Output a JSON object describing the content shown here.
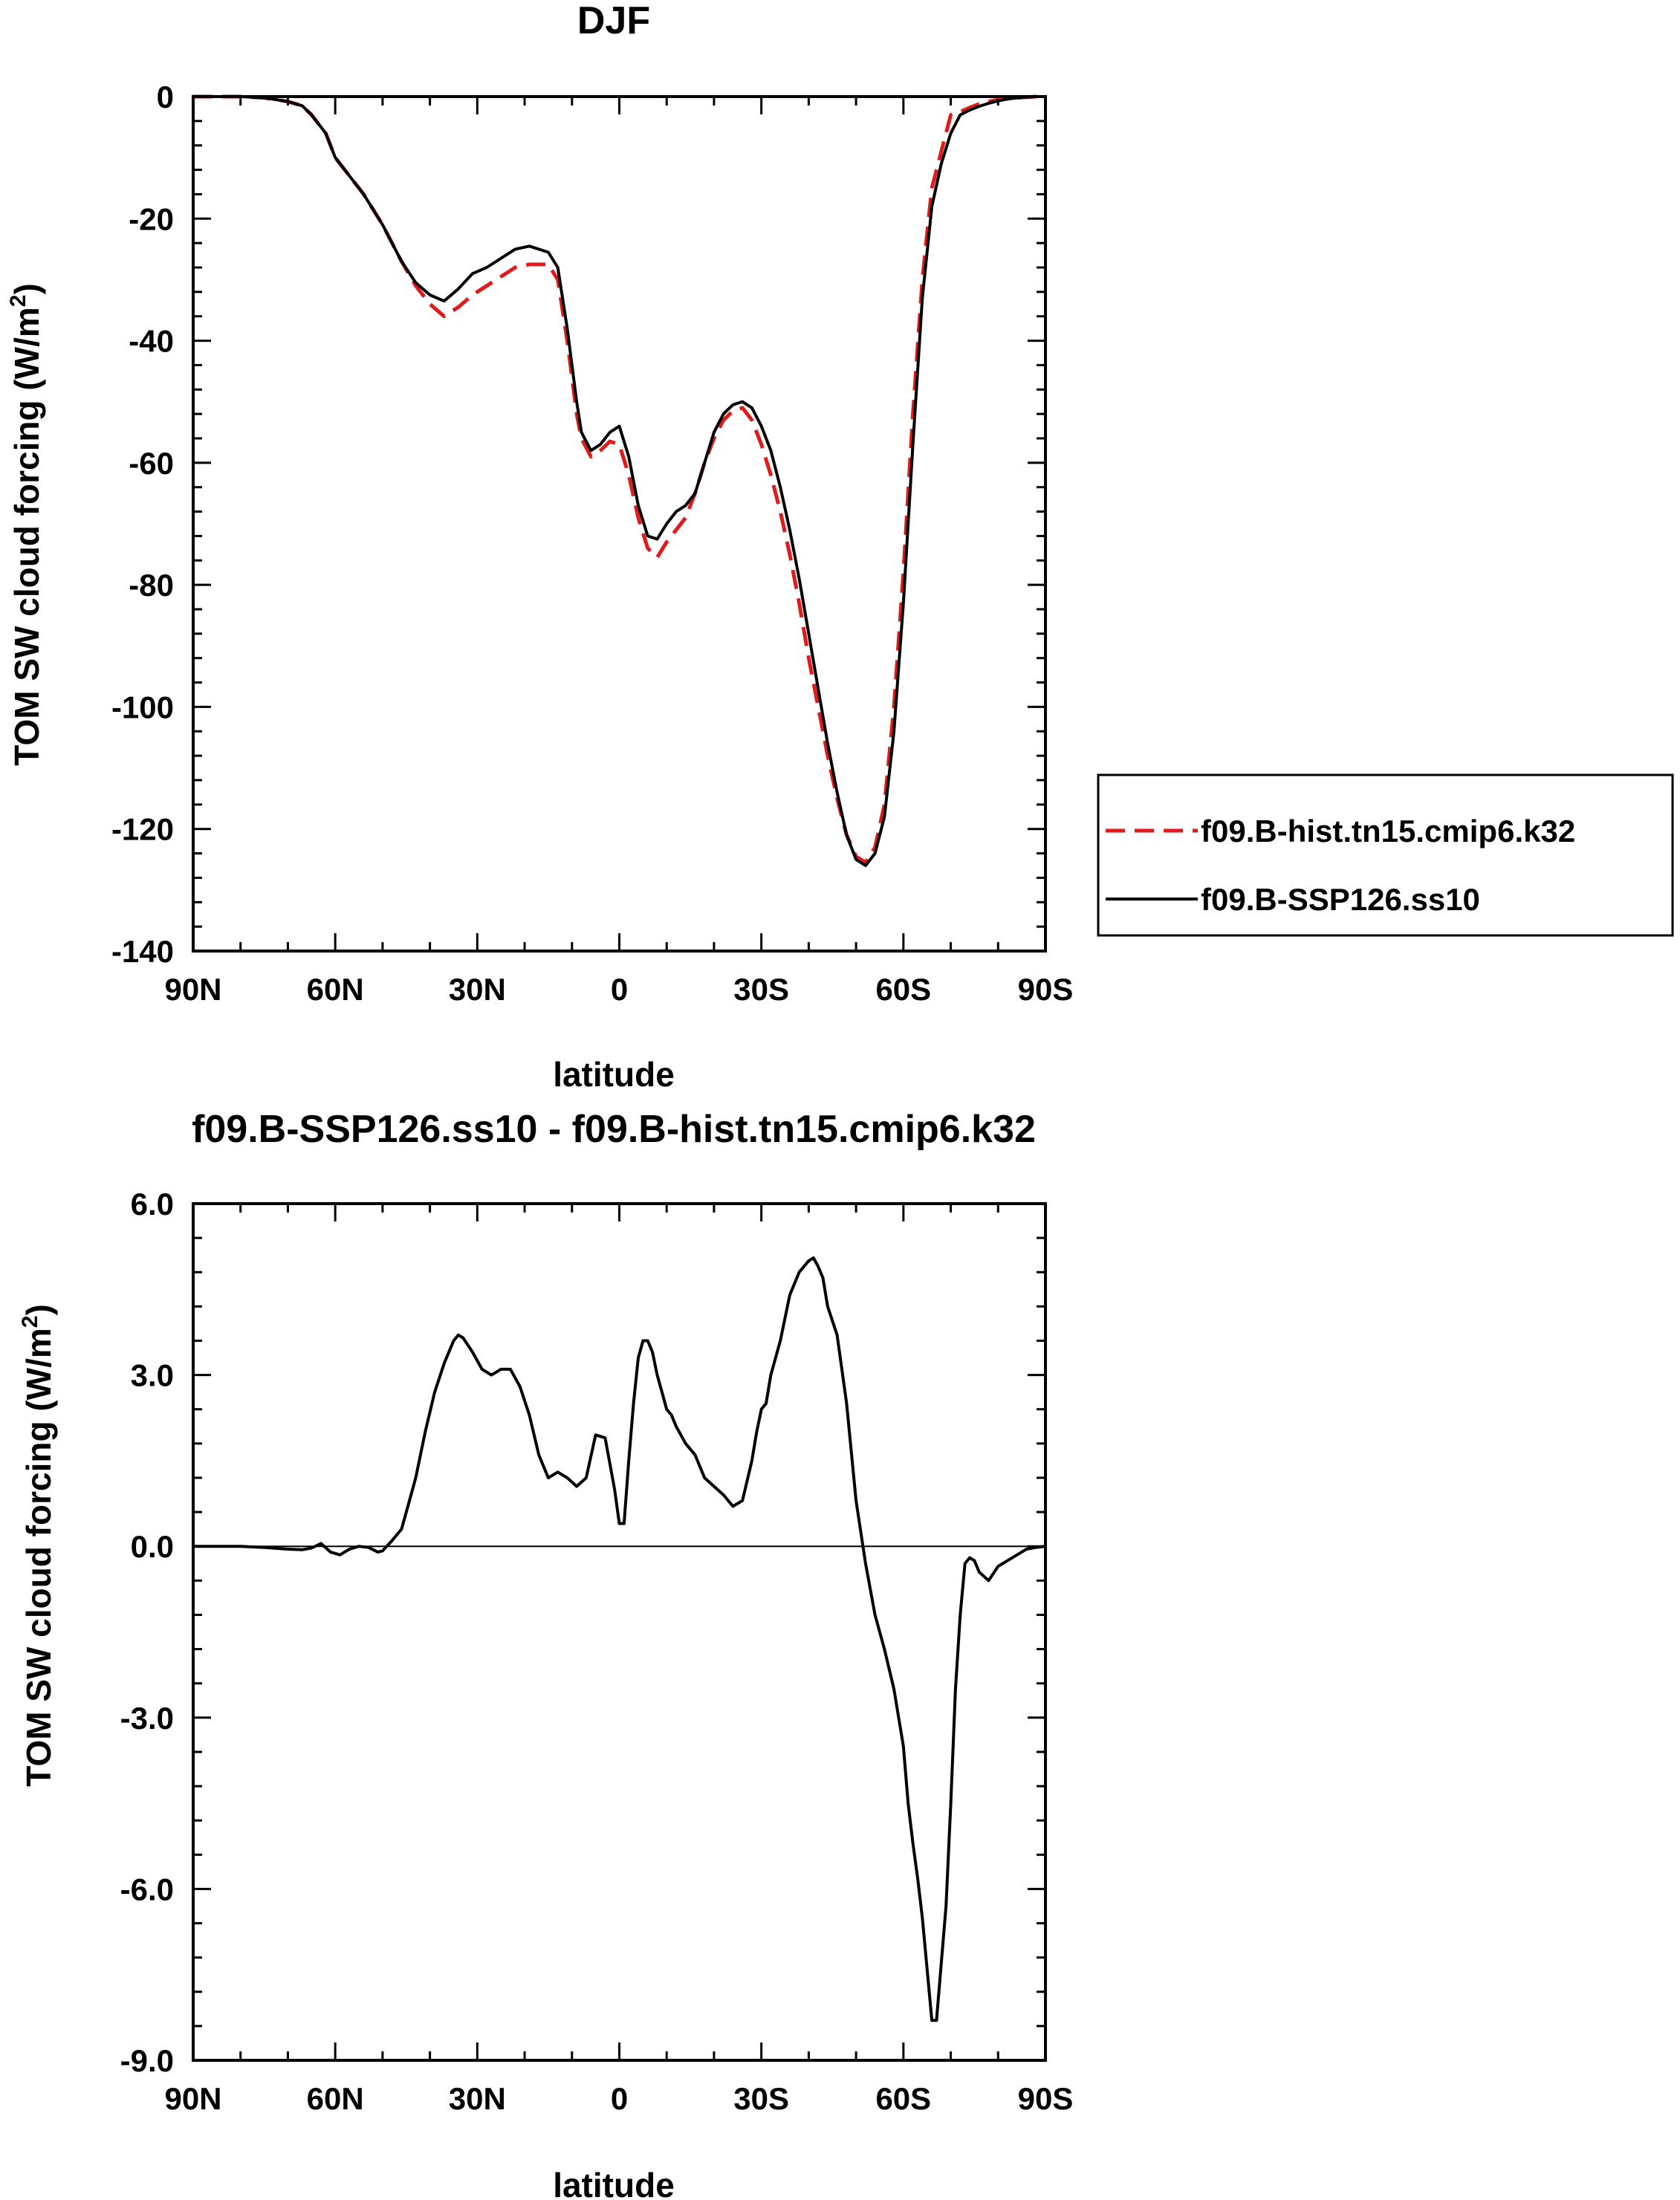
{
  "chart_data": [
    {
      "type": "line",
      "title": "DJF",
      "xlabel": "latitude",
      "ylabel": "TOM SW cloud forcing (W/m",
      "ylabel_sup": "2",
      "ylabel_close": ")",
      "xlim": [
        90,
        -90
      ],
      "ylim": [
        -140,
        0
      ],
      "x_ticks": [
        90,
        60,
        30,
        0,
        -30,
        -60,
        -90
      ],
      "x_tick_labels": [
        "90N",
        "60N",
        "30N",
        "0",
        "30S",
        "60S",
        "90S"
      ],
      "y_ticks": [
        0,
        -20,
        -40,
        -60,
        -80,
        -100,
        -120,
        -140
      ],
      "y_tick_labels": [
        "0",
        "-20",
        "-40",
        "-60",
        "-80",
        "-100",
        "-120",
        "-140"
      ],
      "legend": "right",
      "series": [
        {
          "name": "f09.B-hist.tn15.cmip6.k32",
          "color": "#e31a1c",
          "dash": "dashed",
          "x": [
            90,
            80,
            75,
            70,
            67,
            65,
            62,
            60,
            57,
            54,
            50,
            46,
            43,
            40,
            37,
            34,
            31,
            28,
            25,
            22,
            19,
            17,
            15,
            13,
            11,
            9,
            8,
            6,
            4,
            2,
            0,
            -2,
            -4,
            -6,
            -8,
            -10,
            -12,
            -14,
            -16,
            -18,
            -20,
            -22,
            -24,
            -26,
            -28,
            -30,
            -32,
            -34,
            -36,
            -38,
            -40,
            -42,
            -44,
            -46,
            -48,
            -50,
            -52,
            -54,
            -56,
            -58,
            -60,
            -62,
            -64,
            -66,
            -68,
            -70,
            -72,
            -74,
            -76,
            -78,
            -80,
            -82,
            -84,
            -86,
            -88,
            -90
          ],
          "y": [
            0,
            0,
            -0.2,
            -0.8,
            -1.5,
            -3,
            -6,
            -10,
            -13,
            -16,
            -21,
            -27,
            -31,
            -34,
            -36,
            -34.5,
            -32.5,
            -31,
            -29.5,
            -28,
            -27.5,
            -27.5,
            -27.5,
            -30,
            -40,
            -52,
            -56,
            -59,
            -58,
            -56.5,
            -57,
            -62,
            -69,
            -74,
            -75.5,
            -73,
            -71,
            -69,
            -65,
            -60,
            -56,
            -53,
            -51.5,
            -51,
            -53,
            -57,
            -62,
            -68,
            -75,
            -83,
            -92,
            -100,
            -108,
            -115,
            -121,
            -124.5,
            -125.5,
            -123,
            -116,
            -100,
            -78,
            -52,
            -30,
            -15,
            -9,
            -3,
            -2.5,
            -1.8,
            -1.2,
            -0.8,
            -0.5,
            -0.3,
            -0.2,
            -0.1,
            0,
            0
          ]
        },
        {
          "name": "f09.B-SSP126.ss10",
          "color": "#000000",
          "dash": "solid",
          "x": [
            90,
            80,
            75,
            70,
            67,
            65,
            62,
            60,
            57,
            54,
            50,
            46,
            43,
            40,
            37,
            34,
            31,
            28,
            25,
            22,
            19,
            17,
            15,
            13,
            11,
            9,
            8,
            6,
            4,
            2,
            0,
            -2,
            -4,
            -6,
            -8,
            -10,
            -12,
            -14,
            -16,
            -18,
            -20,
            -22,
            -24,
            -26,
            -28,
            -30,
            -32,
            -34,
            -36,
            -38,
            -40,
            -42,
            -44,
            -46,
            -48,
            -50,
            -52,
            -54,
            -56,
            -58,
            -60,
            -62,
            -64,
            -66,
            -68,
            -70,
            -72,
            -74,
            -76,
            -78,
            -80,
            -82,
            -84,
            -86,
            -88,
            -90
          ],
          "y": [
            0,
            0,
            -0.2,
            -0.8,
            -1.5,
            -3,
            -6,
            -10,
            -13,
            -16,
            -21,
            -27,
            -30.5,
            -32.5,
            -33.5,
            -31.5,
            -29,
            -28,
            -26.5,
            -25,
            -24.5,
            -25,
            -25.5,
            -28,
            -38,
            -50,
            -55,
            -58,
            -57,
            -55,
            -54,
            -59,
            -67,
            -72,
            -72.5,
            -70,
            -68,
            -67,
            -65,
            -60,
            -55,
            -52,
            -50.5,
            -50,
            -51,
            -54,
            -58,
            -64,
            -71,
            -79,
            -88,
            -97,
            -106,
            -114,
            -121,
            -125,
            -126,
            -124,
            -118,
            -104,
            -83,
            -57,
            -33,
            -18,
            -11,
            -6,
            -3,
            -2.2,
            -1.6,
            -1.1,
            -0.7,
            -0.4,
            -0.2,
            -0.1,
            0,
            0
          ]
        }
      ]
    },
    {
      "type": "line",
      "title": "f09.B-SSP126.ss10 - f09.B-hist.tn15.cmip6.k32",
      "xlabel": "latitude",
      "ylabel": "TOM SW cloud forcing (W/m",
      "ylabel_sup": "2",
      "ylabel_close": ")",
      "xlim": [
        90,
        -90
      ],
      "ylim": [
        -9,
        6
      ],
      "x_ticks": [
        90,
        60,
        30,
        0,
        -30,
        -60,
        -90
      ],
      "x_tick_labels": [
        "90N",
        "60N",
        "30N",
        "0",
        "30S",
        "60S",
        "90S"
      ],
      "y_ticks": [
        6,
        3,
        0,
        -3,
        -6,
        -9
      ],
      "y_tick_labels": [
        "6.0",
        "3.0",
        "0.0",
        "-3.0",
        "-6.0",
        "-9.0"
      ],
      "series": [
        {
          "color": "#000000",
          "dash": "solid",
          "x": [
            90,
            80,
            75,
            70,
            67,
            65,
            63,
            61,
            59,
            57,
            55,
            53,
            51,
            50,
            48,
            46,
            45,
            43,
            41,
            39,
            37,
            35,
            34,
            33,
            31,
            29,
            27,
            25,
            23,
            21,
            19,
            17,
            15,
            13,
            11,
            9,
            7,
            5,
            3,
            1,
            0,
            -1,
            -2,
            -3,
            -4,
            -5,
            -6,
            -7,
            -8,
            -9,
            -10,
            -11,
            -12,
            -14,
            -16,
            -18,
            -20,
            -22,
            -24,
            -26,
            -28,
            -29,
            -30,
            -31,
            -32,
            -34,
            -36,
            -38,
            -40,
            -41,
            -42,
            -43,
            -44,
            -46,
            -48,
            -50,
            -52,
            -54,
            -56,
            -58,
            -60,
            -61,
            -62,
            -63,
            -64,
            -65,
            -66,
            -67,
            -68,
            -69,
            -70,
            -71,
            -72,
            -73,
            -74,
            -75,
            -76,
            -78,
            -80,
            -82,
            -84,
            -86,
            -88,
            -90
          ],
          "y": [
            0,
            0,
            -0.02,
            -0.05,
            -0.06,
            -0.03,
            0.05,
            -0.1,
            -0.15,
            -0.05,
            0,
            -0.02,
            -0.1,
            -0.08,
            0.1,
            0.3,
            0.6,
            1.2,
            2.0,
            2.7,
            3.2,
            3.6,
            3.7,
            3.65,
            3.4,
            3.1,
            3.0,
            3.1,
            3.1,
            2.8,
            2.3,
            1.6,
            1.2,
            1.3,
            1.2,
            1.05,
            1.2,
            1.95,
            1.9,
            1.0,
            0.4,
            0.4,
            1.5,
            2.5,
            3.3,
            3.6,
            3.6,
            3.4,
            3.0,
            2.7,
            2.4,
            2.3,
            2.1,
            1.8,
            1.6,
            1.2,
            1.05,
            0.9,
            0.7,
            0.8,
            1.5,
            2.0,
            2.4,
            2.5,
            3.0,
            3.6,
            4.4,
            4.8,
            5.0,
            5.05,
            4.9,
            4.7,
            4.2,
            3.7,
            2.5,
            0.8,
            -0.3,
            -1.2,
            -1.8,
            -2.5,
            -3.5,
            -4.5,
            -5.2,
            -5.8,
            -6.5,
            -7.4,
            -8.3,
            -8.3,
            -7.3,
            -6.3,
            -4.5,
            -2.5,
            -1.2,
            -0.3,
            -0.2,
            -0.25,
            -0.45,
            -0.6,
            -0.35,
            -0.25,
            -0.15,
            -0.05,
            -0.02,
            0
          ]
        }
      ]
    }
  ]
}
